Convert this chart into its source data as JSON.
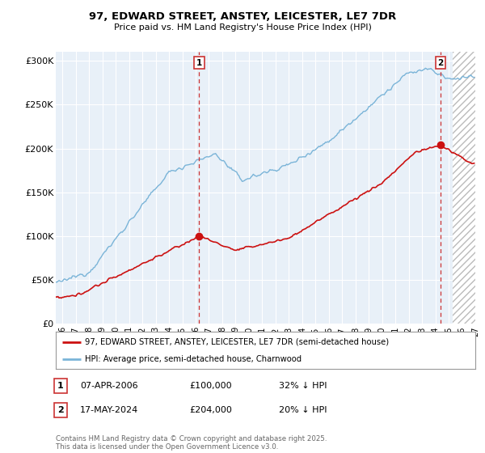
{
  "title": "97, EDWARD STREET, ANSTEY, LEICESTER, LE7 7DR",
  "subtitle": "Price paid vs. HM Land Registry's House Price Index (HPI)",
  "ylabel_ticks": [
    "£0",
    "£50K",
    "£100K",
    "£150K",
    "£200K",
    "£250K",
    "£300K"
  ],
  "ytick_values": [
    0,
    50000,
    100000,
    150000,
    200000,
    250000,
    300000
  ],
  "ylim": [
    0,
    310000
  ],
  "xlim_start": 1995.5,
  "xlim_end": 2027.0,
  "hpi_color": "#7ab4d8",
  "price_color": "#cc1111",
  "dashed_color": "#cc3333",
  "plot_bg": "#e8f0f8",
  "grid_color": "#ffffff",
  "hatch_region_start": 2025.3,
  "marker1_date": 2006.27,
  "marker1_price": 100000,
  "marker2_date": 2024.38,
  "marker2_price": 204000,
  "legend1": "97, EDWARD STREET, ANSTEY, LEICESTER, LE7 7DR (semi-detached house)",
  "legend2": "HPI: Average price, semi-detached house, Charnwood",
  "annotation1_label": "1",
  "annotation1_date": "07-APR-2006",
  "annotation1_price": "£100,000",
  "annotation1_hpi": "32% ↓ HPI",
  "annotation2_label": "2",
  "annotation2_date": "17-MAY-2024",
  "annotation2_price": "£204,000",
  "annotation2_hpi": "20% ↓ HPI",
  "footer": "Contains HM Land Registry data © Crown copyright and database right 2025.\nThis data is licensed under the Open Government Licence v3.0.",
  "background_color": "#ffffff"
}
